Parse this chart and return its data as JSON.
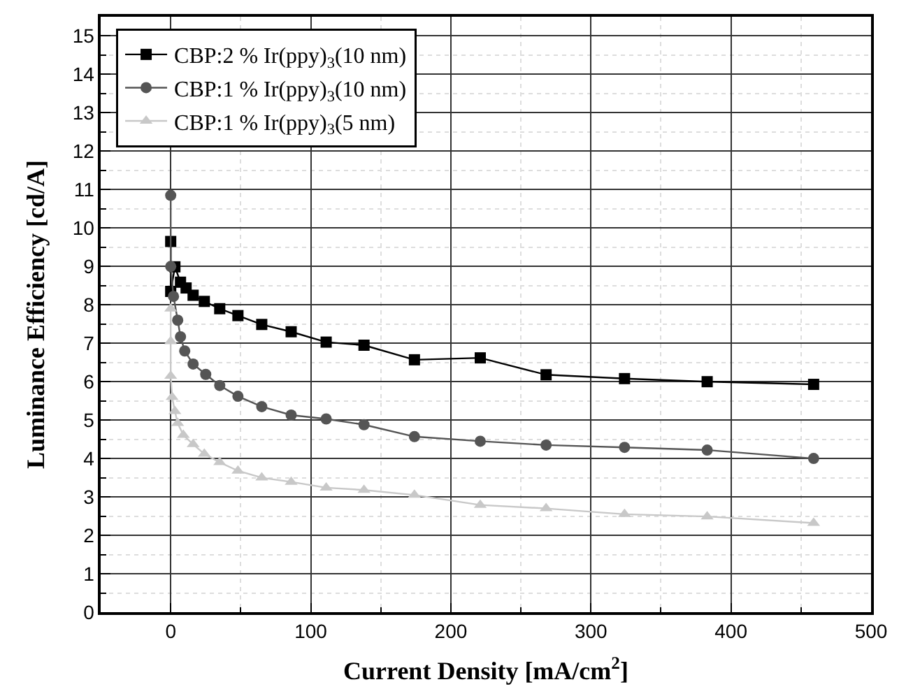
{
  "chart_data": {
    "type": "line",
    "xlabel": "Current Density [mA/cm$^{2}$]",
    "ylabel": "Luminance Efficiency [cd/A]",
    "xlim": [
      -50,
      500
    ],
    "xticks": [
      0,
      100,
      200,
      300,
      400,
      500
    ],
    "ylim": [
      0,
      15.5
    ],
    "yticks": [
      0,
      1,
      2,
      3,
      4,
      5,
      6,
      7,
      8,
      9,
      10,
      11,
      12,
      13,
      14,
      15
    ],
    "grid": true,
    "legend": "top left",
    "line_style": "solid",
    "series": [
      {
        "name": "CBP:2 % Ir(ppy)$_{3}$(10 nm)",
        "color": "#000000",
        "marker": "square",
        "x": [
          0,
          0,
          3,
          7,
          11,
          16,
          24,
          35,
          48,
          65,
          86,
          111,
          138,
          174,
          221,
          268,
          324,
          383,
          459
        ],
        "values": [
          9.65,
          8.35,
          8.99,
          8.59,
          8.44,
          8.25,
          8.09,
          7.9,
          7.72,
          7.49,
          7.3,
          7.03,
          6.95,
          6.57,
          6.62,
          6.18,
          6.08,
          6.0,
          5.93
        ]
      },
      {
        "name": "CBP:1 % Ir(ppy)$_{3}$(10 nm)",
        "color": "#555555",
        "marker": "circle",
        "x": [
          0,
          0,
          2,
          5,
          7,
          10,
          16,
          25,
          35,
          48,
          65,
          86,
          111,
          138,
          174,
          221,
          268,
          324,
          383,
          459
        ],
        "values": [
          10.85,
          9.0,
          8.22,
          7.6,
          7.17,
          6.8,
          6.46,
          6.19,
          5.9,
          5.62,
          5.35,
          5.13,
          5.03,
          4.88,
          4.57,
          4.45,
          4.35,
          4.29,
          4.22,
          4.0
        ]
      },
      {
        "name": "CBP:1 % Ir(ppy)$_{3}$(5 nm)",
        "color": "#c8c8c8",
        "marker": "triangle",
        "x": [
          0,
          0,
          0,
          1,
          3,
          5,
          9,
          16,
          24,
          35,
          48,
          65,
          86,
          111,
          138,
          174,
          221,
          268,
          324,
          383,
          459
        ],
        "values": [
          7.9,
          7.05,
          6.15,
          5.6,
          5.23,
          4.92,
          4.61,
          4.37,
          4.12,
          3.9,
          3.68,
          3.5,
          3.39,
          3.24,
          3.18,
          3.05,
          2.79,
          2.7,
          2.55,
          2.49,
          2.32
        ]
      }
    ]
  }
}
